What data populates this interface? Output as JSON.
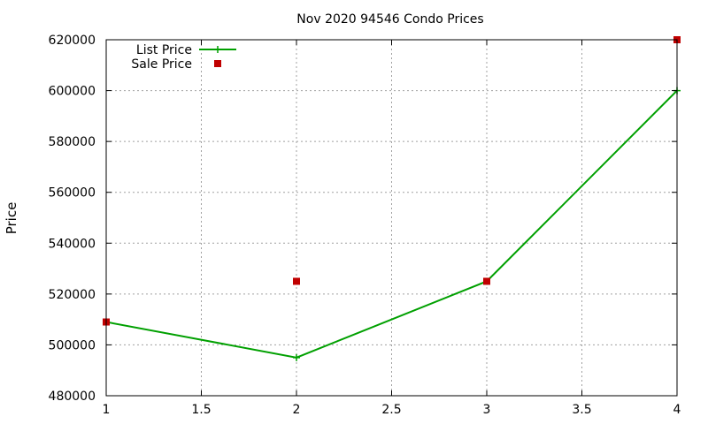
{
  "chart_data": {
    "type": "line",
    "title": "Nov 2020 94546 Condo Prices",
    "xlabel": "",
    "ylabel": "Price",
    "xlim": [
      1,
      4
    ],
    "ylim": [
      480000,
      620000
    ],
    "x_ticks": [
      1,
      1.5,
      2,
      2.5,
      3,
      3.5,
      4
    ],
    "y_ticks": [
      480000,
      500000,
      520000,
      540000,
      560000,
      580000,
      600000,
      620000
    ],
    "grid": true,
    "legend_position": "top-left",
    "series": [
      {
        "name": "List Price",
        "kind": "line",
        "marker": "plus",
        "color": "#00a000",
        "x": [
          1,
          2,
          3,
          4
        ],
        "y": [
          509000,
          495000,
          525000,
          600000
        ]
      },
      {
        "name": "Sale Price",
        "kind": "scatter",
        "marker": "square",
        "color": "#c00000",
        "x": [
          1,
          2,
          3,
          4
        ],
        "y": [
          509000,
          525000,
          525000,
          620000
        ]
      }
    ]
  }
}
